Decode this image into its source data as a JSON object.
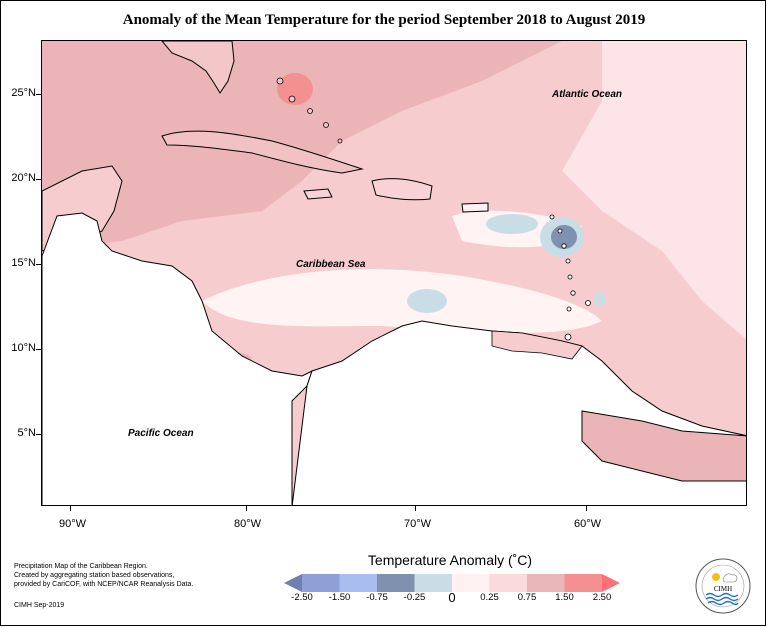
{
  "title": "Anomaly of the Mean Temperature for the period September 2018 to August 2019",
  "map": {
    "ocean_labels": {
      "atlantic": "Atlantic Ocean",
      "caribbean": "Caribbean Sea",
      "pacific": "Pacific Ocean"
    },
    "lat_labels": [
      "25°N",
      "20°N",
      "15°N",
      "10°N",
      "5°N"
    ],
    "lon_labels": [
      "90°W",
      "80°W",
      "70°W",
      "60°W"
    ]
  },
  "legend": {
    "title": "Temperature Anomaly (˚C)",
    "ticks": [
      "-2.50",
      "-1.50",
      "-0.75",
      "-0.25",
      "0",
      "0.25",
      "0.75",
      "1.50",
      "2.50"
    ],
    "bins": [
      {
        "color": "#6e7fb0"
      },
      {
        "color": "#8f9fd8"
      },
      {
        "color": "#a9bdf0"
      },
      {
        "color": "#7e92b0"
      },
      {
        "color": "#c9dde6"
      },
      {
        "color": "#fff1f1"
      },
      {
        "color": "#fbd9dd"
      },
      {
        "color": "#eab7b9"
      },
      {
        "color": "#f49090"
      },
      {
        "color": "#ff6f75"
      }
    ]
  },
  "footnote": {
    "line1": "Precipitation Map of the Caribbean Region.",
    "line2": "Created by aggregating station based observations,",
    "line3": "provided by CariCOF, with NCEP/NCAR Reanalysis Data.",
    "credit": "CIMH Sep-2019"
  },
  "logo": {
    "text": "CIMH"
  }
}
